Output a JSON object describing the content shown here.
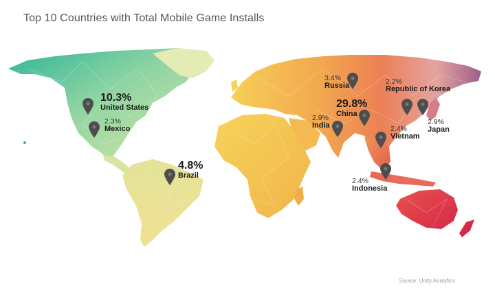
{
  "title": "Top 10 Countries with Total Mobile Game Installs",
  "source": "Source: Unity Analytics",
  "countries": [
    {
      "name": "United States",
      "percent": "10.3%"
    },
    {
      "name": "Mexico",
      "percent": "2.3%"
    },
    {
      "name": "Brazil",
      "percent": "4.8%"
    },
    {
      "name": "Russia",
      "percent": "3.4%"
    },
    {
      "name": "China",
      "percent": "29.8%"
    },
    {
      "name": "India",
      "percent": "2.9%"
    },
    {
      "name": "Republic of Korea",
      "percent": "2.2%"
    },
    {
      "name": "Japan",
      "percent": "2.9%"
    },
    {
      "name": "Vietnam",
      "percent": "2.4%"
    },
    {
      "name": "Indonesia",
      "percent": "2.4%"
    }
  ],
  "icons": {
    "marker": "map-pin-icon"
  },
  "colors": {
    "north_america_west": "#3fbf9a",
    "north_america_east": "#a9d9a0",
    "south_america": "#eede8e",
    "africa": "#f3c64e",
    "europe": "#f7cf57",
    "asia_west": "#f3ad52",
    "asia_central": "#ee8a55",
    "asia_east": "#e6675a",
    "siberia_east": "#a3668e",
    "australia": "#e23c4a",
    "pin": "#4d4d4d"
  }
}
